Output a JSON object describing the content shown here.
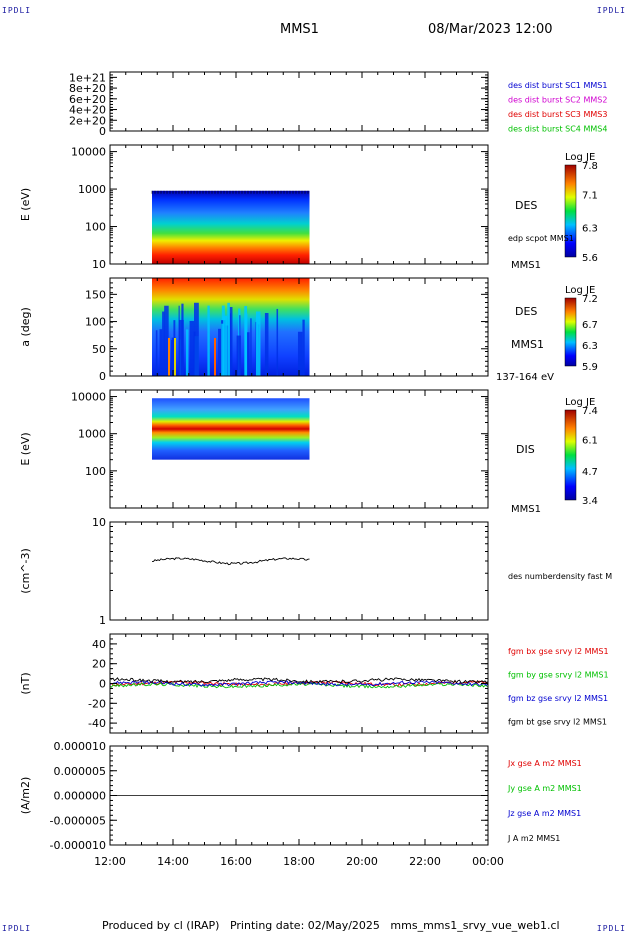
{
  "corners": {
    "tl": "IPDLI",
    "tr": "IPDLI",
    "bl": "IPDLI",
    "br": "IPDLI"
  },
  "header": {
    "spacecraft": "MMS1",
    "datetime": "08/Mar/2023 12:00"
  },
  "footer": {
    "text": "Produced by cl (IRAP)   Printing date: 02/May/2025   mms_mms1_srvy_vue_web1.cl"
  },
  "colors": {
    "red": "#e00000",
    "green": "#00c000",
    "blue": "#0000d0",
    "magenta": "#d000d0",
    "black": "#000000"
  },
  "chart_data": [
    {
      "type": "line",
      "panel": "des-dist-burst",
      "ylabel": "",
      "ylim": [
        0,
        1.1e+21
      ],
      "yticks": [
        "1e+21",
        "8e+20",
        "6e+20",
        "4e+20",
        "2e+20",
        "0"
      ],
      "ytick_values": [
        1e+21,
        8e+20,
        6e+20,
        4e+20,
        2e+20,
        0
      ],
      "legend": [
        {
          "text": "des dist burst SC1 MMS1",
          "color": "#0000d0"
        },
        {
          "text": "des dist burst SC2 MMS2",
          "color": "#d000d0"
        },
        {
          "text": "des dist burst SC3 MMS3",
          "color": "#e00000"
        },
        {
          "text": "des dist burst SC4 MMS4",
          "color": "#00c000"
        }
      ],
      "series": [
        {
          "name": "des dist burst SC1 MMS1",
          "y_constant": 0,
          "style": "dashed"
        }
      ]
    },
    {
      "type": "heatmap",
      "panel": "des-energy-spectrogram",
      "ylabel": "E (eV)",
      "yscale": "log",
      "ylim": [
        10,
        15000
      ],
      "yticks": [
        "10000",
        "1000",
        "100",
        "10"
      ],
      "ytick_values": [
        10000,
        1000,
        100,
        10
      ],
      "data_x_range": [
        "13:20",
        "18:20"
      ],
      "data_y_range": [
        10,
        900
      ],
      "colorbar": {
        "title": "Log JE",
        "ticks": [
          "7.8",
          "7.1",
          "6.3",
          "5.6"
        ],
        "min": 5.6,
        "max": 7.8
      },
      "labels": [
        "DES",
        "edp scpot MMS1",
        "MMS1"
      ]
    },
    {
      "type": "heatmap",
      "panel": "des-pitch-angle",
      "ylabel": "a (deg)",
      "ylim": [
        0,
        180
      ],
      "yticks": [
        "150",
        "100",
        "50",
        "0"
      ],
      "ytick_values": [
        150,
        100,
        50,
        0
      ],
      "data_x_range": [
        "13:20",
        "18:20"
      ],
      "colorbar": {
        "title": "Log JE",
        "ticks": [
          "7.2",
          "6.7",
          "6.3",
          "5.9"
        ],
        "min": 5.9,
        "max": 7.2
      },
      "labels": [
        "DES",
        "MMS1",
        "137-164 eV"
      ]
    },
    {
      "type": "heatmap",
      "panel": "dis-energy-spectrogram",
      "ylabel": "E (eV)",
      "yscale": "log",
      "ylim": [
        10,
        15000
      ],
      "yticks": [
        "10000",
        "1000",
        "100"
      ],
      "ytick_values": [
        10000,
        1000,
        100
      ],
      "data_x_range": [
        "13:20",
        "18:20"
      ],
      "data_y_range": [
        200,
        9000
      ],
      "colorbar": {
        "title": "Log JE",
        "ticks": [
          "7.4",
          "6.1",
          "4.7",
          "3.4"
        ],
        "min": 3.4,
        "max": 7.4
      },
      "labels": [
        "DIS",
        "MMS1"
      ]
    },
    {
      "type": "line",
      "panel": "des-numberdensity",
      "ylabel": "(cm^-3)",
      "yscale": "log",
      "ylim": [
        1,
        10
      ],
      "yticks": [
        "10",
        "1"
      ],
      "ytick_values": [
        10,
        1
      ],
      "legend": [
        {
          "text": "des numberdensity fast M",
          "color": "#000000"
        }
      ],
      "series": [
        {
          "name": "des numberdensity fast M",
          "x_range": [
            "13:20",
            "18:20"
          ],
          "y_approx": 4.0
        }
      ]
    },
    {
      "type": "line",
      "panel": "fgm-b",
      "ylabel": "(nT)",
      "ylim": [
        -50,
        50
      ],
      "yticks": [
        "40",
        "20",
        "0",
        "-20",
        "-40"
      ],
      "ytick_values": [
        40,
        20,
        0,
        -20,
        -40
      ],
      "legend": [
        {
          "text": "fgm bx gse srvy l2 MMS1",
          "color": "#e00000"
        },
        {
          "text": "fgm by gse srvy l2 MMS1",
          "color": "#00c000"
        },
        {
          "text": "fgm bz gse srvy l2 MMS1",
          "color": "#0000d0"
        },
        {
          "text": "fgm bt gse srvy l2 MMS1",
          "color": "#000000"
        }
      ],
      "series": [
        {
          "name": "fgm bx gse srvy l2 MMS1",
          "y_approx": 0
        },
        {
          "name": "fgm by gse srvy l2 MMS1",
          "y_approx": -2
        },
        {
          "name": "fgm bz gse srvy l2 MMS1",
          "y_approx": 0
        },
        {
          "name": "fgm bt gse srvy l2 MMS1",
          "y_approx": 3
        }
      ]
    },
    {
      "type": "line",
      "panel": "current-density",
      "ylabel": "(A/m2)",
      "ylim": [
        -1e-05,
        1e-05
      ],
      "yticks": [
        "0.000010",
        "0.000005",
        "0.000000",
        "-0.000005",
        "-0.000010"
      ],
      "ytick_values": [
        1e-05,
        5e-06,
        0,
        -5e-06,
        -1e-05
      ],
      "legend": [
        {
          "text": "Jx gse A m2 MMS1",
          "color": "#e00000"
        },
        {
          "text": "Jy gse A m2 MMS1",
          "color": "#00c000"
        },
        {
          "text": "Jz gse A m2 MMS1",
          "color": "#0000d0"
        },
        {
          "text": "J A m2 MMS1",
          "color": "#000000"
        }
      ],
      "series": [
        {
          "name": "J A m2 MMS1",
          "y_approx": 0
        }
      ]
    }
  ],
  "xaxis": {
    "ticks": [
      "12:00",
      "14:00",
      "16:00",
      "18:00",
      "20:00",
      "22:00",
      "00:00"
    ],
    "range_hours": [
      12,
      24
    ]
  }
}
